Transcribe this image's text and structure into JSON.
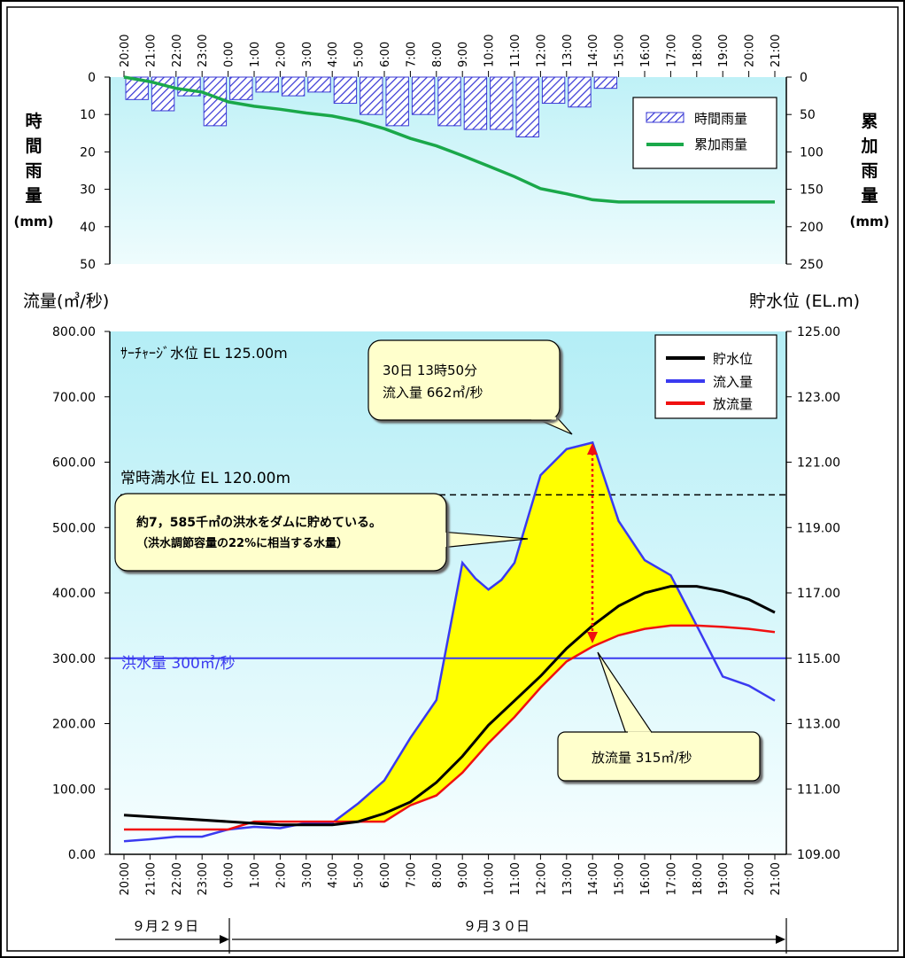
{
  "chart_data": [
    {
      "type": "bar",
      "x_categories": [
        "20:00",
        "21:00",
        "22:00",
        "23:00",
        "0:00",
        "1:00",
        "2:00",
        "3:00",
        "4:00",
        "5:00",
        "6:00",
        "7:00",
        "8:00",
        "9:00",
        "10:00",
        "11:00",
        "12:00",
        "13:00",
        "14:00",
        "15:00",
        "16:00",
        "17:00",
        "18:00",
        "19:00",
        "20:00",
        "21:00"
      ],
      "left_axis_label": [
        "時",
        "間",
        "雨",
        "量",
        "(mm)"
      ],
      "right_axis_label": [
        "累",
        "加",
        "雨",
        "量",
        "(mm)"
      ],
      "left_ticks": [
        "0",
        "10",
        "20",
        "30",
        "40",
        "50"
      ],
      "right_ticks": [
        "0",
        "50",
        "100",
        "150",
        "200",
        "250"
      ],
      "ylim_left": [
        0,
        50
      ],
      "ylim_right": [
        0,
        250
      ],
      "y_inverted": true,
      "series": [
        {
          "name": "時間雨量",
          "type": "bar",
          "color": "#3a3ad6",
          "values": [
            6,
            9,
            5,
            13,
            6,
            4,
            5,
            4,
            7,
            10,
            13,
            10,
            13,
            14,
            14,
            16,
            7,
            8,
            3,
            0,
            0,
            0,
            0,
            0,
            0,
            0
          ]
        },
        {
          "name": "累加雨量",
          "type": "line",
          "color": "#1aa84a",
          "x_index": [
            0,
            1,
            2,
            3,
            4,
            5,
            6,
            7,
            8,
            9,
            10,
            11,
            12,
            13,
            14,
            15,
            16,
            17,
            18,
            19,
            20,
            21,
            22,
            23,
            24,
            25
          ],
          "values": [
            0,
            6,
            15,
            20,
            33,
            39,
            43,
            48,
            52,
            59,
            69,
            82,
            92,
            105,
            119,
            133,
            149,
            156,
            164,
            167,
            167,
            167,
            167,
            167,
            167,
            167
          ]
        }
      ],
      "legend_placement": "top-right"
    },
    {
      "type": "line",
      "left_axis_label": "流量(㎥/秒)",
      "right_axis_label": "貯水位 (EL.m)",
      "left_ticks": [
        "0.00",
        "100.00",
        "200.00",
        "300.00",
        "400.00",
        "500.00",
        "600.00",
        "700.00",
        "800.00"
      ],
      "right_ticks": [
        "109.00",
        "111.00",
        "113.00",
        "115.00",
        "117.00",
        "119.00",
        "121.00",
        "123.00",
        "125.00"
      ],
      "ylim_left": [
        0,
        800
      ],
      "ylim_right": [
        109,
        125
      ],
      "x_categories": [
        "20:00",
        "21:00",
        "22:00",
        "23:00",
        "0:00",
        "1:00",
        "2:00",
        "3:00",
        "4:00",
        "5:00",
        "6:00",
        "7:00",
        "8:00",
        "9:00",
        "10:00",
        "11:00",
        "12:00",
        "13:00",
        "14:00",
        "15:00",
        "16:00",
        "17:00",
        "18:00",
        "19:00",
        "20:00",
        "21:00"
      ],
      "series": [
        {
          "name": "貯水位",
          "color": "#000000",
          "axis": "right",
          "x_index": [
            0,
            4,
            5,
            6,
            8,
            9,
            10,
            11,
            12,
            13,
            14,
            15,
            16,
            17,
            18,
            19,
            20,
            21,
            22,
            23,
            24,
            25
          ],
          "values": [
            110.2,
            110.0,
            109.95,
            109.9,
            109.9,
            110.0,
            110.25,
            110.6,
            111.2,
            112.0,
            112.95,
            113.7,
            114.45,
            115.3,
            116.0,
            116.6,
            117.0,
            117.2,
            117.2,
            117.05,
            116.8,
            116.4
          ]
        },
        {
          "name": "流入量",
          "color": "#3a3af0",
          "axis": "left",
          "x_index": [
            0,
            1,
            2,
            3,
            4,
            5,
            6,
            7,
            8,
            9,
            10,
            11,
            12,
            13,
            13.5,
            14,
            14.5,
            15,
            16,
            17,
            18,
            19,
            20,
            21,
            22,
            23,
            24,
            25
          ],
          "values": [
            20,
            23,
            27,
            27,
            38,
            42,
            40,
            48,
            48,
            78,
            113,
            178,
            236,
            446,
            422,
            405,
            420,
            446,
            580,
            620,
            630,
            510,
            450,
            427,
            350,
            272,
            258,
            235
          ]
        },
        {
          "name": "放流量",
          "color": "#f01010",
          "axis": "left",
          "x_index": [
            0,
            1,
            2,
            3,
            4,
            5,
            6,
            7,
            8,
            9,
            10,
            11,
            12,
            13,
            14,
            15,
            16,
            17,
            18,
            19,
            20,
            21,
            22,
            23,
            24,
            25
          ],
          "values": [
            38,
            38,
            38,
            38,
            38,
            50,
            50,
            50,
            50,
            50,
            50,
            75,
            90,
            125,
            170,
            210,
            255,
            295,
            318,
            335,
            345,
            350,
            350,
            348,
            345,
            340
          ]
        }
      ],
      "reference_lines": [
        {
          "label": "洪水量 300㎥/秒",
          "value": 300,
          "axis": "left",
          "color": "#3a3af0"
        },
        {
          "label": "常時満水位 EL 120.00m",
          "value": 120,
          "axis": "right",
          "color": "#000000",
          "dashed": true
        },
        {
          "label": "ｻｰﾁｬｰｼﾞ水位 EL 125.00m",
          "value": 125,
          "axis": "right",
          "color": "#000000"
        }
      ],
      "annotations": [
        {
          "id": "peak",
          "lines": [
            "30日 13時50分",
            "流入量 662㎥/秒"
          ]
        },
        {
          "id": "storage",
          "lines": [
            "約7，585千㎥の洪水をダムに貯めている。",
            "（洪水調節容量の22%に相当する水量）"
          ]
        },
        {
          "id": "release",
          "lines": [
            "放流量 315㎥/秒"
          ]
        }
      ],
      "date_labels": [
        "９月２９日",
        "９月３０日"
      ],
      "legend_placement": "top-right"
    }
  ]
}
